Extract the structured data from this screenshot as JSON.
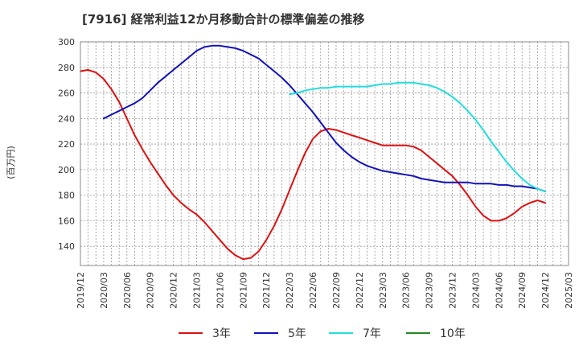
{
  "chart_data": {
    "type": "line",
    "title": "[7916]  経常利益12か月移動合計の標準偏差の推移",
    "ylabel": "(百万円)",
    "xlabel": "",
    "ylim": [
      125,
      300
    ],
    "yticks": [
      140,
      160,
      180,
      200,
      220,
      240,
      260,
      280,
      300
    ],
    "xlim": [
      "2019-12",
      "2025-03"
    ],
    "xticks": [
      "2019/12",
      "2020/03",
      "2020/06",
      "2020/09",
      "2020/12",
      "2021/03",
      "2021/06",
      "2021/09",
      "2021/12",
      "2022/03",
      "2022/06",
      "2022/09",
      "2022/12",
      "2023/03",
      "2023/06",
      "2023/09",
      "2023/12",
      "2024/03",
      "2024/06",
      "2024/09",
      "2024/12",
      "2025/03"
    ],
    "grid": true,
    "legend_position": "bottom",
    "series": [
      {
        "name": "3年",
        "color": "#dd1111",
        "data": [
          [
            "2019-12",
            277
          ],
          [
            "2020-01",
            278
          ],
          [
            "2020-02",
            276
          ],
          [
            "2020-03",
            271
          ],
          [
            "2020-04",
            263
          ],
          [
            "2020-05",
            253
          ],
          [
            "2020-06",
            240
          ],
          [
            "2020-07",
            227
          ],
          [
            "2020-08",
            216
          ],
          [
            "2020-09",
            206
          ],
          [
            "2020-10",
            197
          ],
          [
            "2020-11",
            188
          ],
          [
            "2020-12",
            180
          ],
          [
            "2021-01",
            174
          ],
          [
            "2021-02",
            169
          ],
          [
            "2021-03",
            165
          ],
          [
            "2021-04",
            159
          ],
          [
            "2021-05",
            152
          ],
          [
            "2021-06",
            145
          ],
          [
            "2021-07",
            138
          ],
          [
            "2021-08",
            133
          ],
          [
            "2021-09",
            130
          ],
          [
            "2021-10",
            131
          ],
          [
            "2021-11",
            136
          ],
          [
            "2021-12",
            145
          ],
          [
            "2022-01",
            156
          ],
          [
            "2022-02",
            169
          ],
          [
            "2022-03",
            184
          ],
          [
            "2022-04",
            199
          ],
          [
            "2022-05",
            213
          ],
          [
            "2022-06",
            224
          ],
          [
            "2022-07",
            230
          ],
          [
            "2022-08",
            232
          ],
          [
            "2022-09",
            231
          ],
          [
            "2022-10",
            229
          ],
          [
            "2022-11",
            227
          ],
          [
            "2022-12",
            225
          ],
          [
            "2023-01",
            223
          ],
          [
            "2023-02",
            221
          ],
          [
            "2023-03",
            219
          ],
          [
            "2023-04",
            219
          ],
          [
            "2023-05",
            219
          ],
          [
            "2023-06",
            219
          ],
          [
            "2023-07",
            218
          ],
          [
            "2023-08",
            215
          ],
          [
            "2023-09",
            210
          ],
          [
            "2023-10",
            205
          ],
          [
            "2023-11",
            200
          ],
          [
            "2023-12",
            195
          ],
          [
            "2024-01",
            188
          ],
          [
            "2024-02",
            180
          ],
          [
            "2024-03",
            171
          ],
          [
            "2024-04",
            164
          ],
          [
            "2024-05",
            160
          ],
          [
            "2024-06",
            160
          ],
          [
            "2024-07",
            162
          ],
          [
            "2024-08",
            166
          ],
          [
            "2024-09",
            171
          ],
          [
            "2024-10",
            174
          ],
          [
            "2024-11",
            176
          ],
          [
            "2024-12",
            174
          ]
        ]
      },
      {
        "name": "5年",
        "color": "#1111bb",
        "data": [
          [
            "2020-03",
            240
          ],
          [
            "2020-04",
            243
          ],
          [
            "2020-05",
            246
          ],
          [
            "2020-06",
            249
          ],
          [
            "2020-07",
            252
          ],
          [
            "2020-08",
            256
          ],
          [
            "2020-09",
            262
          ],
          [
            "2020-10",
            268
          ],
          [
            "2020-11",
            273
          ],
          [
            "2020-12",
            278
          ],
          [
            "2021-01",
            283
          ],
          [
            "2021-02",
            288
          ],
          [
            "2021-03",
            293
          ],
          [
            "2021-04",
            296
          ],
          [
            "2021-05",
            297
          ],
          [
            "2021-06",
            297
          ],
          [
            "2021-07",
            296
          ],
          [
            "2021-08",
            295
          ],
          [
            "2021-09",
            293
          ],
          [
            "2021-10",
            290
          ],
          [
            "2021-11",
            287
          ],
          [
            "2021-12",
            282
          ],
          [
            "2022-01",
            277
          ],
          [
            "2022-02",
            272
          ],
          [
            "2022-03",
            266
          ],
          [
            "2022-04",
            259
          ],
          [
            "2022-05",
            252
          ],
          [
            "2022-06",
            245
          ],
          [
            "2022-07",
            237
          ],
          [
            "2022-08",
            229
          ],
          [
            "2022-09",
            221
          ],
          [
            "2022-10",
            215
          ],
          [
            "2022-11",
            210
          ],
          [
            "2022-12",
            206
          ],
          [
            "2023-01",
            203
          ],
          [
            "2023-02",
            201
          ],
          [
            "2023-03",
            199
          ],
          [
            "2023-04",
            198
          ],
          [
            "2023-05",
            197
          ],
          [
            "2023-06",
            196
          ],
          [
            "2023-07",
            195
          ],
          [
            "2023-08",
            193
          ],
          [
            "2023-09",
            192
          ],
          [
            "2023-10",
            191
          ],
          [
            "2023-11",
            190
          ],
          [
            "2023-12",
            190
          ],
          [
            "2024-01",
            190
          ],
          [
            "2024-02",
            190
          ],
          [
            "2024-03",
            189
          ],
          [
            "2024-04",
            189
          ],
          [
            "2024-05",
            189
          ],
          [
            "2024-06",
            188
          ],
          [
            "2024-07",
            188
          ],
          [
            "2024-08",
            187
          ],
          [
            "2024-09",
            187
          ],
          [
            "2024-10",
            186
          ],
          [
            "2024-11",
            185
          ],
          [
            "2024-12",
            183
          ]
        ]
      },
      {
        "name": "7年",
        "color": "#22dddd",
        "data": [
          [
            "2022-03",
            259
          ],
          [
            "2022-04",
            260
          ],
          [
            "2022-05",
            262
          ],
          [
            "2022-06",
            263
          ],
          [
            "2022-07",
            264
          ],
          [
            "2022-08",
            264
          ],
          [
            "2022-09",
            265
          ],
          [
            "2022-10",
            265
          ],
          [
            "2022-11",
            265
          ],
          [
            "2022-12",
            265
          ],
          [
            "2023-01",
            265
          ],
          [
            "2023-02",
            266
          ],
          [
            "2023-03",
            267
          ],
          [
            "2023-04",
            267
          ],
          [
            "2023-05",
            268
          ],
          [
            "2023-06",
            268
          ],
          [
            "2023-07",
            268
          ],
          [
            "2023-08",
            267
          ],
          [
            "2023-09",
            266
          ],
          [
            "2023-10",
            264
          ],
          [
            "2023-11",
            261
          ],
          [
            "2023-12",
            257
          ],
          [
            "2024-01",
            252
          ],
          [
            "2024-02",
            246
          ],
          [
            "2024-03",
            239
          ],
          [
            "2024-04",
            231
          ],
          [
            "2024-05",
            222
          ],
          [
            "2024-06",
            214
          ],
          [
            "2024-07",
            206
          ],
          [
            "2024-08",
            199
          ],
          [
            "2024-09",
            193
          ],
          [
            "2024-10",
            188
          ],
          [
            "2024-11",
            185
          ],
          [
            "2024-12",
            183
          ]
        ]
      },
      {
        "name": "10年",
        "color": "#228822",
        "data": []
      }
    ]
  }
}
